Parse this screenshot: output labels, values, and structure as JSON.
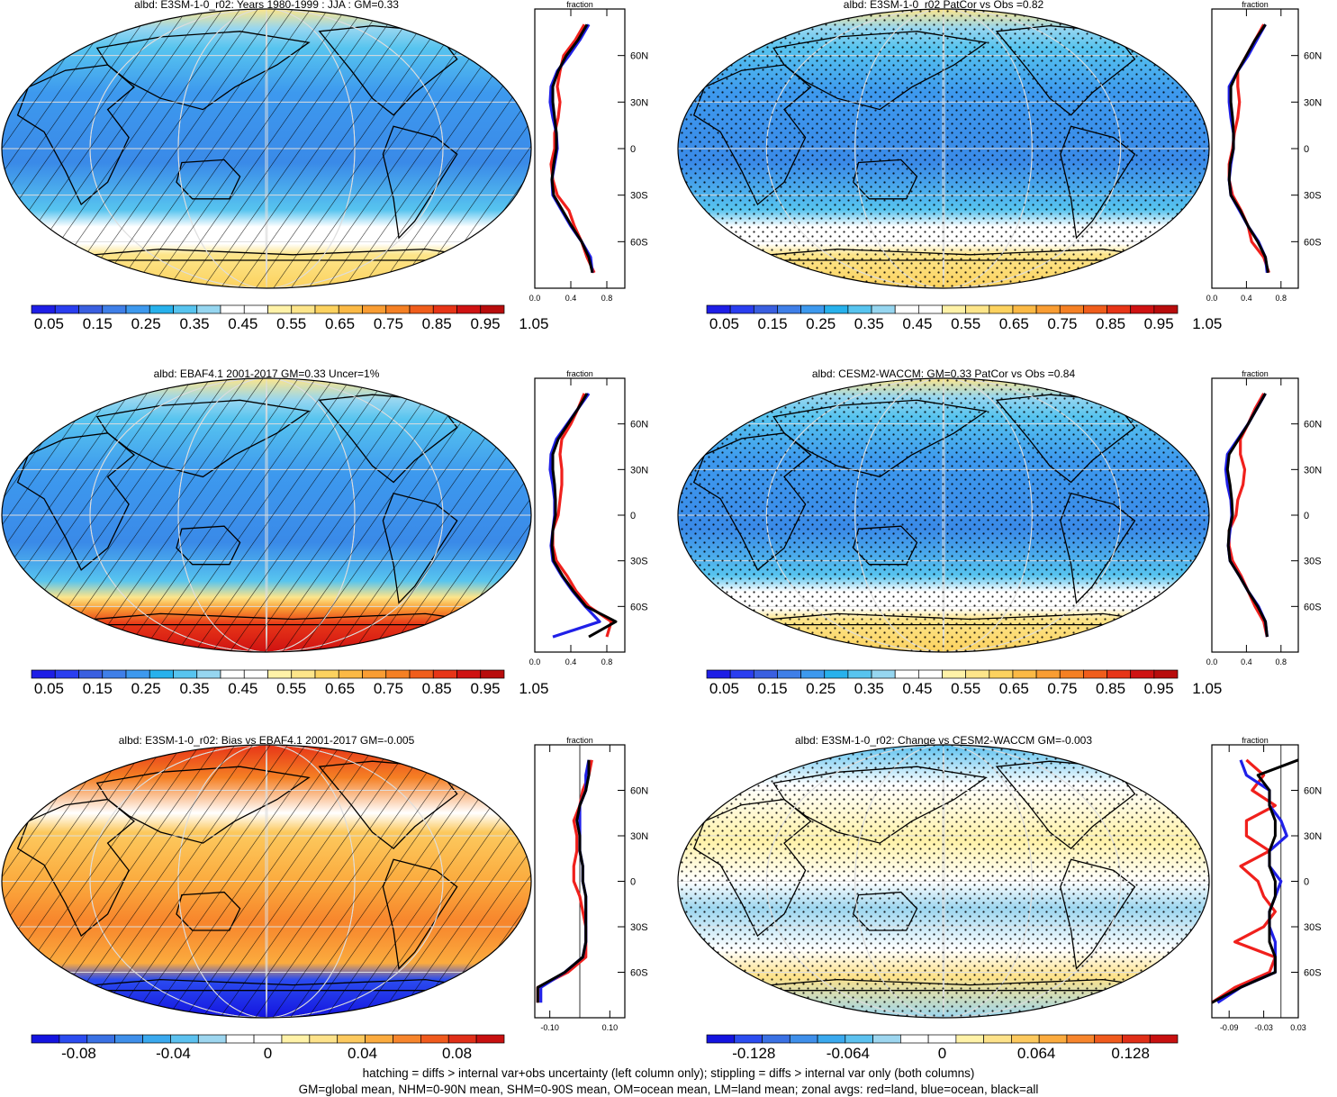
{
  "colors": {
    "abs_scale": [
      "#1e1ee6",
      "#2a3ef0",
      "#3a5fe0",
      "#3f7fe8",
      "#3d99ee",
      "#27b1ec",
      "#57c4ef",
      "#96d6f0",
      "#ffffff",
      "#ffffff",
      "#fff2a8",
      "#fde58a",
      "#fcd25f",
      "#fbb945",
      "#f99d33",
      "#f58024",
      "#f05d1b",
      "#e73517",
      "#cf1212",
      "#b80c0c"
    ],
    "diff_scale": [
      "#1414e0",
      "#2b4cf0",
      "#3a71e4",
      "#3f8fea",
      "#3aa9ee",
      "#5cc1ef",
      "#9dd6ef",
      "#ffffff",
      "#ffffff",
      "#fff2a8",
      "#fde28a",
      "#fcc95e",
      "#fbab3e",
      "#f7852c",
      "#f05a1d",
      "#e02f18",
      "#c81010"
    ],
    "ocean_light": "#5aa8ec",
    "ocean_mid": "#3d7fe0",
    "land_red": "#f0201c",
    "land_blue": "#2020e8",
    "zonal_black": "#000000"
  },
  "chart_data": [
    {
      "type": "heatmap",
      "title": "albd: E3SM-1-0_r02: Years 1980-1999 : JJA : GM=0.33",
      "colorbar_labels": [
        "0.05",
        "0.15",
        "0.25",
        "0.35",
        "0.45",
        "0.55",
        "0.65",
        "0.75",
        "0.85",
        "0.95",
        "1.05"
      ],
      "zonal": {
        "title": "fraction",
        "xticks": [
          "0.0",
          "0.4",
          "0.8"
        ],
        "xlim": [
          0,
          1
        ],
        "yticks": [
          "60N",
          "30N",
          "0",
          "30S",
          "60S"
        ],
        "lat": [
          80,
          70,
          60,
          50,
          40,
          30,
          20,
          10,
          0,
          -10,
          -20,
          -30,
          -40,
          -50,
          -60,
          -70,
          -80
        ],
        "series": [
          {
            "name": "land",
            "color": "red",
            "values": [
              0.55,
              0.45,
              0.32,
              0.28,
              0.25,
              0.28,
              0.26,
              0.22,
              0.22,
              0.18,
              0.2,
              0.25,
              0.38,
              0.44,
              0.52,
              0.58,
              0.66
            ]
          },
          {
            "name": "ocean",
            "color": "blue",
            "values": [
              0.6,
              0.5,
              0.38,
              0.25,
              0.18,
              0.17,
              0.2,
              0.24,
              0.25,
              0.22,
              0.19,
              0.2,
              0.3,
              0.4,
              0.52,
              0.62,
              0.64
            ]
          },
          {
            "name": "all",
            "color": "black",
            "values": [
              0.58,
              0.48,
              0.35,
              0.26,
              0.2,
              0.2,
              0.22,
              0.24,
              0.24,
              0.21,
              0.19,
              0.21,
              0.31,
              0.41,
              0.52,
              0.6,
              0.64
            ]
          }
        ]
      }
    },
    {
      "type": "heatmap",
      "title": "albd: E3SM-1-0_r02 PatCor vs Obs =0.82",
      "colorbar_labels": [
        "0.05",
        "0.15",
        "0.25",
        "0.35",
        "0.45",
        "0.55",
        "0.65",
        "0.75",
        "0.85",
        "0.95",
        "1.05"
      ],
      "zonal": {
        "title": "fraction",
        "xticks": [
          "0.0",
          "0.4",
          "0.8"
        ],
        "xlim": [
          0,
          1
        ],
        "yticks": [
          "60N",
          "30N",
          "0",
          "30S",
          "60S"
        ],
        "lat": [
          80,
          70,
          60,
          50,
          40,
          30,
          20,
          10,
          0,
          -10,
          -20,
          -30,
          -40,
          -50,
          -60,
          -70,
          -80
        ],
        "series": [
          {
            "name": "land",
            "color": "red",
            "values": [
              0.6,
              0.5,
              0.4,
              0.3,
              0.3,
              0.32,
              0.3,
              0.26,
              0.24,
              0.2,
              0.2,
              0.24,
              0.34,
              0.42,
              0.46,
              0.6,
              0.66
            ]
          },
          {
            "name": "ocean",
            "color": "blue",
            "values": [
              0.62,
              0.52,
              0.42,
              0.3,
              0.2,
              0.2,
              0.22,
              0.25,
              0.25,
              0.22,
              0.2,
              0.22,
              0.32,
              0.42,
              0.54,
              0.62,
              0.64
            ]
          },
          {
            "name": "all",
            "color": "black",
            "values": [
              0.62,
              0.5,
              0.4,
              0.3,
              0.22,
              0.22,
              0.24,
              0.25,
              0.25,
              0.21,
              0.2,
              0.22,
              0.33,
              0.42,
              0.53,
              0.62,
              0.65
            ]
          }
        ]
      }
    },
    {
      "type": "heatmap",
      "title": "albd: EBAF4.1 2001-2017 GM=0.33 Uncer=1%",
      "colorbar_labels": [
        "0.05",
        "0.15",
        "0.25",
        "0.35",
        "0.45",
        "0.55",
        "0.65",
        "0.75",
        "0.85",
        "0.95",
        "1.05"
      ],
      "zonal": {
        "title": "fraction",
        "xticks": [
          "0.0",
          "0.4",
          "0.8"
        ],
        "xlim": [
          0,
          1
        ],
        "yticks": [
          "60N",
          "30N",
          "0",
          "30S",
          "60S"
        ],
        "lat": [
          80,
          70,
          60,
          50,
          40,
          30,
          20,
          10,
          0,
          -10,
          -20,
          -30,
          -40,
          -50,
          -60,
          -70,
          -80
        ],
        "series": [
          {
            "name": "land",
            "color": "red",
            "values": [
              0.55,
              0.48,
              0.4,
              0.3,
              0.28,
              0.3,
              0.3,
              0.28,
              0.26,
              0.2,
              0.2,
              0.24,
              0.36,
              0.46,
              0.6,
              0.85,
              0.8
            ]
          },
          {
            "name": "ocean",
            "color": "blue",
            "values": [
              0.6,
              0.48,
              0.36,
              0.24,
              0.18,
              0.17,
              0.2,
              0.22,
              0.22,
              0.2,
              0.18,
              0.2,
              0.3,
              0.42,
              0.56,
              0.72,
              0.2
            ]
          },
          {
            "name": "all",
            "color": "black",
            "values": [
              0.58,
              0.48,
              0.37,
              0.26,
              0.2,
              0.2,
              0.22,
              0.23,
              0.23,
              0.2,
              0.19,
              0.21,
              0.31,
              0.43,
              0.57,
              0.9,
              0.6
            ]
          }
        ]
      }
    },
    {
      "type": "heatmap",
      "title": "albd: CESM2-WACCM: GM=0.33 PatCor vs Obs =0.84",
      "colorbar_labels": [
        "0.05",
        "0.15",
        "0.25",
        "0.35",
        "0.45",
        "0.55",
        "0.65",
        "0.75",
        "0.85",
        "0.95",
        "1.05"
      ],
      "zonal": {
        "title": "fraction",
        "xticks": [
          "0.0",
          "0.4",
          "0.8"
        ],
        "xlim": [
          0,
          1
        ],
        "yticks": [
          "60N",
          "30N",
          "0",
          "30S",
          "60S"
        ],
        "lat": [
          80,
          70,
          60,
          50,
          40,
          30,
          20,
          10,
          0,
          -10,
          -20,
          -30,
          -40,
          -50,
          -60,
          -70,
          -80
        ],
        "series": [
          {
            "name": "land",
            "color": "red",
            "values": [
              0.6,
              0.5,
              0.42,
              0.33,
              0.33,
              0.38,
              0.36,
              0.3,
              0.28,
              0.2,
              0.2,
              0.24,
              0.34,
              0.42,
              0.5,
              0.6,
              0.64
            ]
          },
          {
            "name": "ocean",
            "color": "blue",
            "values": [
              0.62,
              0.52,
              0.42,
              0.3,
              0.18,
              0.16,
              0.18,
              0.22,
              0.23,
              0.21,
              0.19,
              0.21,
              0.32,
              0.42,
              0.54,
              0.62,
              0.64
            ]
          },
          {
            "name": "all",
            "color": "black",
            "values": [
              0.62,
              0.52,
              0.42,
              0.31,
              0.2,
              0.18,
              0.21,
              0.23,
              0.24,
              0.2,
              0.19,
              0.21,
              0.32,
              0.42,
              0.53,
              0.62,
              0.64
            ]
          }
        ]
      }
    },
    {
      "type": "heatmap",
      "title": "albd: E3SM-1-0_r02: Bias vs EBAF4.1 2001-2017 GM=-0.005",
      "colorbar_labels": [
        "-0.08",
        "-0.04",
        "0",
        "0.04",
        "0.08"
      ],
      "zonal": {
        "title": "fraction",
        "xticks": [
          "-0.10",
          "0.10"
        ],
        "xlim": [
          -0.15,
          0.15
        ],
        "yticks": [
          "60N",
          "30N",
          "0",
          "30S",
          "60S"
        ],
        "lat": [
          80,
          70,
          60,
          50,
          40,
          30,
          20,
          10,
          0,
          -10,
          -20,
          -30,
          -40,
          -50,
          -60,
          -70,
          -80
        ],
        "series": [
          {
            "name": "land",
            "color": "red",
            "values": [
              0.04,
              0.03,
              0.01,
              0.0,
              -0.02,
              -0.01,
              -0.01,
              -0.02,
              -0.02,
              0.0,
              0.01,
              0.02,
              0.02,
              0.02,
              -0.04,
              -0.14,
              -0.14
            ]
          },
          {
            "name": "ocean",
            "color": "blue",
            "values": [
              0.03,
              0.02,
              0.02,
              0.0,
              0.0,
              0.0,
              0.0,
              0.01,
              0.01,
              0.02,
              0.02,
              0.02,
              0.02,
              0.01,
              -0.05,
              -0.13,
              -0.13
            ]
          },
          {
            "name": "all",
            "color": "black",
            "values": [
              0.03,
              0.03,
              0.02,
              0.0,
              -0.01,
              0.0,
              0.0,
              0.01,
              0.01,
              0.02,
              0.02,
              0.02,
              0.02,
              0.01,
              -0.05,
              -0.14,
              -0.14
            ]
          }
        ]
      }
    },
    {
      "type": "heatmap",
      "title": "albd: E3SM-1-0_r02: Change vs CESM2-WACCM GM=-0.003",
      "colorbar_labels": [
        "-0.128",
        "-0.064",
        "0",
        "0.064",
        "0.128"
      ],
      "zonal": {
        "title": "fraction",
        "xticks": [
          "-0.09",
          "-0.03",
          "0.03"
        ],
        "xlim": [
          -0.12,
          0.03
        ],
        "yticks": [
          "60N",
          "30N",
          "0",
          "30S",
          "60S"
        ],
        "lat": [
          80,
          70,
          60,
          50,
          40,
          30,
          20,
          10,
          0,
          -10,
          -20,
          -30,
          -40,
          -50,
          -60,
          -70,
          -80
        ],
        "series": [
          {
            "name": "land",
            "color": "red",
            "values": [
              -0.06,
              -0.03,
              -0.05,
              -0.01,
              -0.06,
              -0.06,
              -0.02,
              -0.07,
              -0.04,
              -0.03,
              -0.01,
              -0.03,
              -0.08,
              -0.01,
              -0.02,
              -0.08,
              -0.12
            ]
          },
          {
            "name": "ocean",
            "color": "blue",
            "values": [
              -0.07,
              -0.06,
              -0.02,
              -0.02,
              0.0,
              0.01,
              -0.02,
              -0.02,
              0.0,
              -0.01,
              -0.02,
              -0.02,
              -0.01,
              -0.01,
              -0.01,
              -0.07,
              -0.11
            ]
          },
          {
            "name": "all",
            "color": "black",
            "values": [
              0.03,
              -0.04,
              -0.02,
              -0.02,
              -0.01,
              -0.01,
              -0.02,
              -0.02,
              -0.01,
              -0.01,
              -0.02,
              -0.02,
              -0.02,
              -0.01,
              -0.01,
              -0.07,
              -0.12
            ]
          }
        ]
      }
    }
  ],
  "footer": {
    "line1": "hatching = diffs > internal var+obs uncertainty (left column only); stippling = diffs > internal var only (both columns)",
    "line2": "GM=global mean, NHM=0-90N mean, SHM=0-90S mean, OM=ocean mean, LM=land mean; zonal avgs: red=land, blue=ocean, black=all"
  }
}
